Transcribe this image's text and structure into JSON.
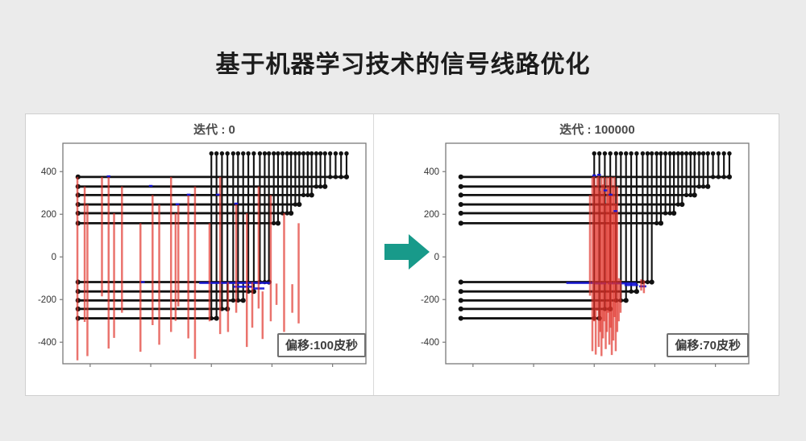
{
  "page": {
    "title": "基于机器学习技术的信号线路优化",
    "background_color": "#ebebeb",
    "panel_color": "#ffffff"
  },
  "arrow": {
    "name": "transform-arrow",
    "direction": "right",
    "color": "#189a8a"
  },
  "chart_data": [
    {
      "type": "line-segments",
      "title": "迭代 : 0",
      "annotation": "偏移:100皮秒",
      "xlabel": "",
      "ylabel": "",
      "xlim": [
        -4290,
        -3290
      ],
      "ylim": [
        -501,
        533
      ],
      "xticks": [
        -4200,
        -4000,
        -3800,
        -3600,
        -3400
      ],
      "yticks": [
        -400,
        -200,
        0,
        200,
        400
      ],
      "grid": false,
      "legend": "none",
      "colors": {
        "wire": "#111111",
        "offset_stem": "#e03028",
        "target_mark": "#1515d8",
        "frame": "#7a7a7a"
      },
      "horizontal_wires": [
        {
          "y": 375,
          "x1": -4240,
          "x2": -3354
        },
        {
          "y": 330,
          "x1": -4240,
          "x2": -3425
        },
        {
          "y": 290,
          "x1": -4240,
          "x2": -3469
        },
        {
          "y": 246,
          "x1": -4240,
          "x2": -3510
        },
        {
          "y": 205,
          "x1": -4240,
          "x2": -3537
        },
        {
          "y": 158,
          "x1": -4240,
          "x2": -3580
        },
        {
          "y": -118,
          "x1": -4240,
          "x2": -3610
        },
        {
          "y": -162,
          "x1": -4240,
          "x2": -3660
        },
        {
          "y": -204,
          "x1": -4240,
          "x2": -3695
        },
        {
          "y": -244,
          "x1": -4240,
          "x2": -3747
        },
        {
          "y": -288,
          "x1": -4240,
          "x2": -3783
        }
      ],
      "vertical_wires": [
        {
          "x": -3800,
          "y1": 485,
          "y2": -288
        },
        {
          "x": -3783,
          "y1": 485,
          "y2": -288
        },
        {
          "x": -3765,
          "y1": 485,
          "y2": -244
        },
        {
          "x": -3747,
          "y1": 485,
          "y2": -244
        },
        {
          "x": -3728,
          "y1": 485,
          "y2": -204
        },
        {
          "x": -3712,
          "y1": 485,
          "y2": -204
        },
        {
          "x": -3695,
          "y1": 485,
          "y2": -204
        },
        {
          "x": -3678,
          "y1": 485,
          "y2": -162
        },
        {
          "x": -3660,
          "y1": 485,
          "y2": -162
        },
        {
          "x": -3640,
          "y1": 485,
          "y2": -118
        },
        {
          "x": -3624,
          "y1": 485,
          "y2": -118
        },
        {
          "x": -3610,
          "y1": 485,
          "y2": -118
        },
        {
          "x": -3594,
          "y1": 485,
          "y2": 158
        },
        {
          "x": -3580,
          "y1": 485,
          "y2": 158
        },
        {
          "x": -3565,
          "y1": 485,
          "y2": 205
        },
        {
          "x": -3550,
          "y1": 485,
          "y2": 205
        },
        {
          "x": -3537,
          "y1": 485,
          "y2": 205
        },
        {
          "x": -3523,
          "y1": 485,
          "y2": 246
        },
        {
          "x": -3510,
          "y1": 485,
          "y2": 246
        },
        {
          "x": -3496,
          "y1": 485,
          "y2": 290
        },
        {
          "x": -3482,
          "y1": 485,
          "y2": 290
        },
        {
          "x": -3469,
          "y1": 485,
          "y2": 290
        },
        {
          "x": -3454,
          "y1": 485,
          "y2": 330
        },
        {
          "x": -3440,
          "y1": 485,
          "y2": 330
        },
        {
          "x": -3425,
          "y1": 485,
          "y2": 330
        },
        {
          "x": -3408,
          "y1": 485,
          "y2": 375
        },
        {
          "x": -3390,
          "y1": 485,
          "y2": 375
        },
        {
          "x": -3372,
          "y1": 485,
          "y2": 375
        },
        {
          "x": -3354,
          "y1": 485,
          "y2": 375
        }
      ],
      "offset_stems": [
        {
          "x": -4242,
          "y1": 375,
          "y2": -485
        },
        {
          "x": -4218,
          "y1": 330,
          "y2": -305
        },
        {
          "x": -4209,
          "y1": 246,
          "y2": -465
        },
        {
          "x": -4161,
          "y1": 375,
          "y2": -185
        },
        {
          "x": -4139,
          "y1": 378,
          "y2": -430
        },
        {
          "x": -4121,
          "y1": 205,
          "y2": -380
        },
        {
          "x": -4095,
          "y1": 330,
          "y2": -262
        },
        {
          "x": -4034,
          "y1": 158,
          "y2": -445
        },
        {
          "x": -3994,
          "y1": 290,
          "y2": -320
        },
        {
          "x": -3972,
          "y1": 246,
          "y2": -412
        },
        {
          "x": -3933,
          "y1": 375,
          "y2": -352
        },
        {
          "x": -3918,
          "y1": 205,
          "y2": -300
        },
        {
          "x": -3909,
          "y1": 246,
          "y2": -232
        },
        {
          "x": -3876,
          "y1": 290,
          "y2": -382
        },
        {
          "x": -3854,
          "y1": 330,
          "y2": -478
        },
        {
          "x": -3806,
          "y1": 158,
          "y2": -302
        },
        {
          "x": -3771,
          "y1": 375,
          "y2": -362
        },
        {
          "x": -3745,
          "y1": -118,
          "y2": -352
        },
        {
          "x": -3718,
          "y1": 246,
          "y2": -262
        },
        {
          "x": -3683,
          "y1": 205,
          "y2": -422
        },
        {
          "x": -3665,
          "y1": -118,
          "y2": -332
        },
        {
          "x": -3644,
          "y1": 330,
          "y2": -242
        },
        {
          "x": -3631,
          "y1": -162,
          "y2": -385
        },
        {
          "x": -3604,
          "y1": 290,
          "y2": -302
        },
        {
          "x": -3585,
          "y1": -125,
          "y2": -225
        },
        {
          "x": -3560,
          "y1": 205,
          "y2": -352
        },
        {
          "x": -3533,
          "y1": -128,
          "y2": -262
        },
        {
          "x": -3512,
          "y1": 158,
          "y2": -312
        }
      ],
      "target_marks": {
        "segments": [
          {
            "x1": -3840,
            "x2": -3605,
            "y": -122
          },
          {
            "x1": -3728,
            "x2": -3665,
            "y": -140
          },
          {
            "x1": -3662,
            "x2": -3625,
            "y": -148
          }
        ],
        "ticks": [
          {
            "x1": -4145,
            "x2": -4133,
            "y": 378
          },
          {
            "x1": -4006,
            "x2": -3994,
            "y": 333
          },
          {
            "x1": -3918,
            "x2": -3906,
            "y": 247
          },
          {
            "x1": -3881,
            "x2": -3869,
            "y": 292
          },
          {
            "x1": -3785,
            "x2": -3773,
            "y": 292
          },
          {
            "x1": -3724,
            "x2": -3712,
            "y": 250
          },
          {
            "x1": -4032,
            "x2": -4020,
            "y": -118
          }
        ]
      }
    },
    {
      "type": "line-segments",
      "title": "迭代 : 100000",
      "annotation": "偏移:70皮秒",
      "xlabel": "",
      "ylabel": "",
      "xlim": [
        -4290,
        -3290
      ],
      "ylim": [
        -501,
        533
      ],
      "xticks": [
        -4200,
        -4000,
        -3800,
        -3600,
        -3400
      ],
      "yticks": [
        -400,
        -200,
        0,
        200,
        400
      ],
      "grid": false,
      "legend": "none",
      "colors": {
        "wire": "#111111",
        "offset_stem": "#e03028",
        "target_mark": "#1515d8",
        "frame": "#7a7a7a"
      },
      "horizontal_wires": [
        {
          "y": 375,
          "x1": -4240,
          "x2": -3354
        },
        {
          "y": 330,
          "x1": -4240,
          "x2": -3425
        },
        {
          "y": 290,
          "x1": -4240,
          "x2": -3469
        },
        {
          "y": 246,
          "x1": -4240,
          "x2": -3510
        },
        {
          "y": 205,
          "x1": -4240,
          "x2": -3537
        },
        {
          "y": 158,
          "x1": -4240,
          "x2": -3580
        },
        {
          "y": -118,
          "x1": -4240,
          "x2": -3610
        },
        {
          "y": -162,
          "x1": -4240,
          "x2": -3660
        },
        {
          "y": -204,
          "x1": -4240,
          "x2": -3695
        },
        {
          "y": -244,
          "x1": -4240,
          "x2": -3747
        },
        {
          "y": -288,
          "x1": -4240,
          "x2": -3783
        }
      ],
      "vertical_wires": [
        {
          "x": -3800,
          "y1": 485,
          "y2": -288
        },
        {
          "x": -3783,
          "y1": 485,
          "y2": -288
        },
        {
          "x": -3765,
          "y1": 485,
          "y2": -244
        },
        {
          "x": -3747,
          "y1": 485,
          "y2": -244
        },
        {
          "x": -3728,
          "y1": 485,
          "y2": -204
        },
        {
          "x": -3712,
          "y1": 485,
          "y2": -204
        },
        {
          "x": -3695,
          "y1": 485,
          "y2": -204
        },
        {
          "x": -3678,
          "y1": 485,
          "y2": -162
        },
        {
          "x": -3660,
          "y1": 485,
          "y2": -162
        },
        {
          "x": -3640,
          "y1": 485,
          "y2": -118
        },
        {
          "x": -3624,
          "y1": 485,
          "y2": -118
        },
        {
          "x": -3610,
          "y1": 485,
          "y2": -118
        },
        {
          "x": -3594,
          "y1": 485,
          "y2": 158
        },
        {
          "x": -3580,
          "y1": 485,
          "y2": 158
        },
        {
          "x": -3565,
          "y1": 485,
          "y2": 205
        },
        {
          "x": -3550,
          "y1": 485,
          "y2": 205
        },
        {
          "x": -3537,
          "y1": 485,
          "y2": 205
        },
        {
          "x": -3523,
          "y1": 485,
          "y2": 246
        },
        {
          "x": -3510,
          "y1": 485,
          "y2": 246
        },
        {
          "x": -3496,
          "y1": 485,
          "y2": 290
        },
        {
          "x": -3482,
          "y1": 485,
          "y2": 290
        },
        {
          "x": -3469,
          "y1": 485,
          "y2": 290
        },
        {
          "x": -3454,
          "y1": 485,
          "y2": 330
        },
        {
          "x": -3440,
          "y1": 485,
          "y2": 330
        },
        {
          "x": -3425,
          "y1": 485,
          "y2": 330
        },
        {
          "x": -3408,
          "y1": 485,
          "y2": 375
        },
        {
          "x": -3390,
          "y1": 485,
          "y2": 375
        },
        {
          "x": -3372,
          "y1": 485,
          "y2": 375
        },
        {
          "x": -3354,
          "y1": 485,
          "y2": 375
        }
      ],
      "offset_stems": [
        {
          "x": -3814,
          "y1": 290,
          "y2": -182
        },
        {
          "x": -3806,
          "y1": 375,
          "y2": -442
        },
        {
          "x": -3800,
          "y1": 382,
          "y2": -302
        },
        {
          "x": -3795,
          "y1": 330,
          "y2": -458
        },
        {
          "x": -3790,
          "y1": 375,
          "y2": -252
        },
        {
          "x": -3785,
          "y1": 382,
          "y2": -422
        },
        {
          "x": -3780,
          "y1": 310,
          "y2": -352
        },
        {
          "x": -3776,
          "y1": 375,
          "y2": -465
        },
        {
          "x": -3771,
          "y1": 340,
          "y2": -382
        },
        {
          "x": -3767,
          "y1": 375,
          "y2": -302
        },
        {
          "x": -3762,
          "y1": 250,
          "y2": -432
        },
        {
          "x": -3758,
          "y1": 375,
          "y2": -352
        },
        {
          "x": -3754,
          "y1": 330,
          "y2": -262
        },
        {
          "x": -3750,
          "y1": 375,
          "y2": -412
        },
        {
          "x": -3746,
          "y1": 290,
          "y2": -332
        },
        {
          "x": -3742,
          "y1": 375,
          "y2": -460
        },
        {
          "x": -3737,
          "y1": 330,
          "y2": -392
        },
        {
          "x": -3733,
          "y1": 375,
          "y2": -282
        },
        {
          "x": -3729,
          "y1": 250,
          "y2": -442
        },
        {
          "x": -3724,
          "y1": 330,
          "y2": -352
        },
        {
          "x": -3719,
          "y1": -100,
          "y2": -302
        },
        {
          "x": -3713,
          "y1": -108,
          "y2": -262
        },
        {
          "x": -3645,
          "y1": -105,
          "y2": -158
        },
        {
          "x": -3636,
          "y1": -110,
          "y2": -170
        }
      ],
      "target_marks": {
        "segments": [
          {
            "x1": -3892,
            "x2": -3800,
            "y": -122
          },
          {
            "x1": -3798,
            "x2": -3760,
            "y": -124
          },
          {
            "x1": -3755,
            "x2": -3660,
            "y": -124
          },
          {
            "x1": -3700,
            "x2": -3655,
            "y": -132
          },
          {
            "x1": -3652,
            "x2": -3628,
            "y": -138
          }
        ],
        "ticks": [
          {
            "x1": -3806,
            "x2": -3794,
            "y": 382
          },
          {
            "x1": -3790,
            "x2": -3778,
            "y": 385
          },
          {
            "x1": -3769,
            "x2": -3757,
            "y": 312
          },
          {
            "x1": -3752,
            "x2": -3740,
            "y": 292
          },
          {
            "x1": -3736,
            "x2": -3724,
            "y": 215
          }
        ]
      }
    }
  ]
}
